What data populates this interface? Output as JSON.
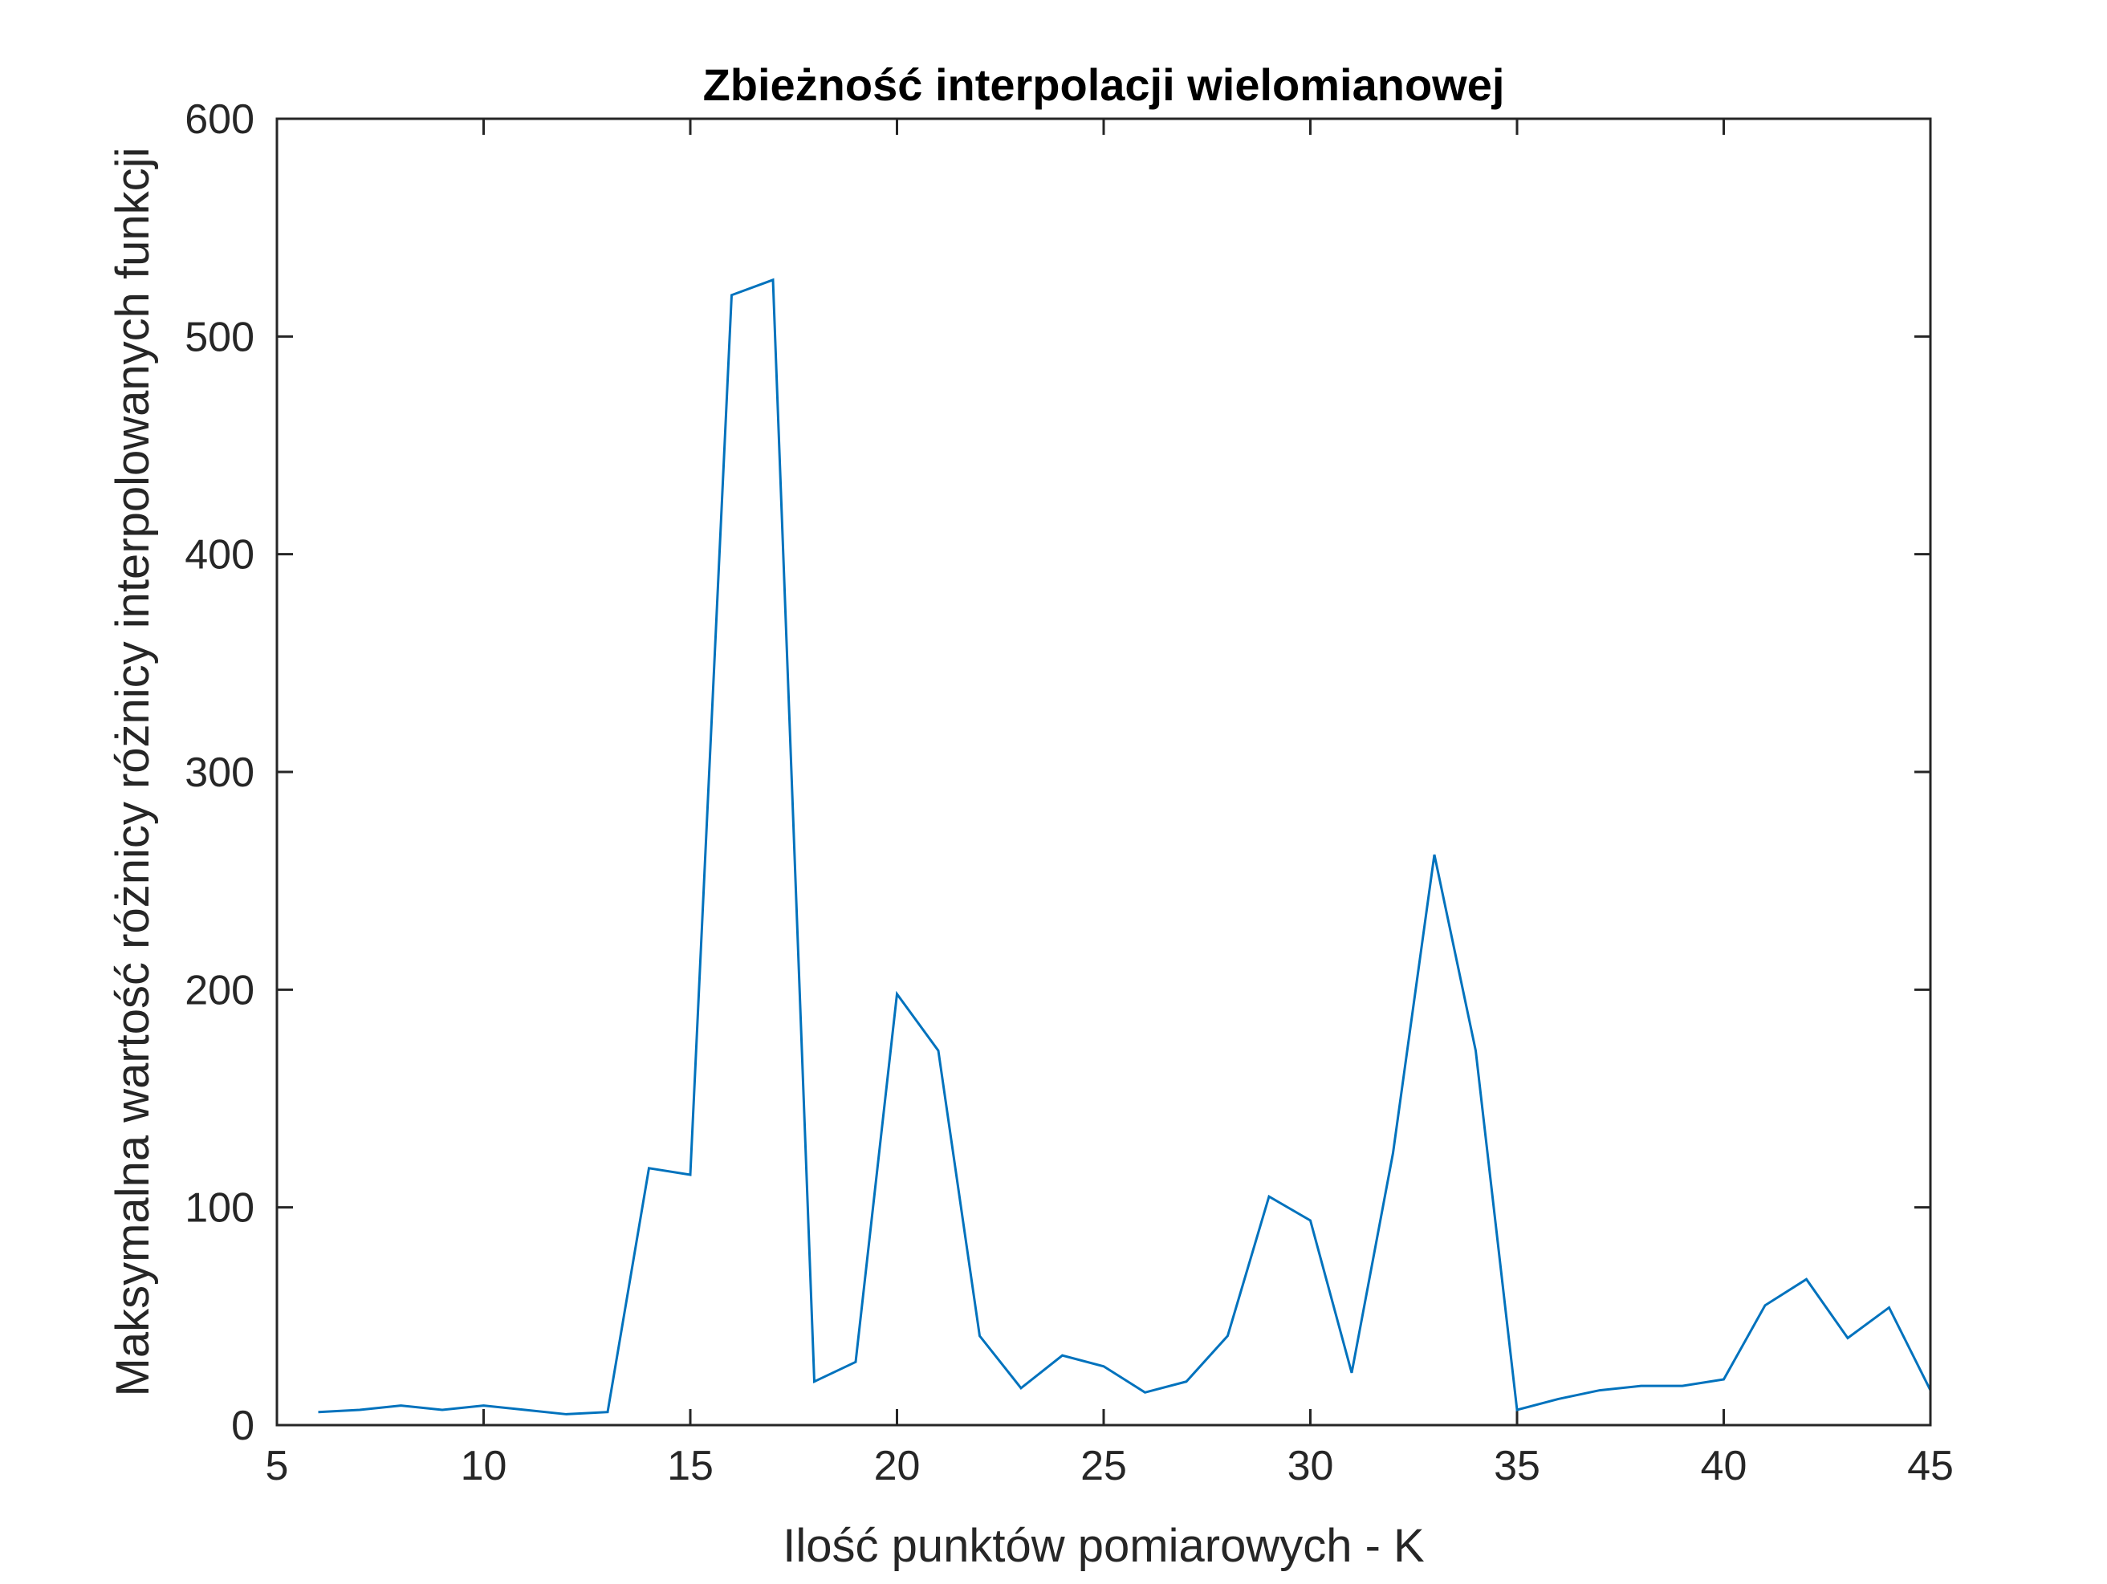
{
  "colors": {
    "line": "#0072BD",
    "axis": "#262626",
    "background": "#ffffff"
  },
  "chart_data": {
    "type": "line",
    "title": "Zbieżność interpolacji wielomianowej",
    "xlabel": "Ilość punktów pomiarowych - K",
    "ylabel": "Maksymalna wartość różnicy różnicy interpolowanych funkcji",
    "xlim": [
      5,
      45
    ],
    "ylim": [
      0,
      600
    ],
    "xticks": [
      "5",
      "10",
      "15",
      "20",
      "25",
      "30",
      "35",
      "40",
      "45"
    ],
    "yticks": [
      "0",
      "100",
      "200",
      "300",
      "400",
      "500",
      "600"
    ],
    "grid": false,
    "series": [
      {
        "x": [
          6,
          7,
          8,
          9,
          10,
          11,
          12,
          13,
          14,
          15,
          16,
          17,
          18,
          19,
          20,
          21,
          22,
          23,
          24,
          25,
          26,
          27,
          28,
          29,
          30,
          31,
          32,
          33,
          34,
          35,
          36,
          37,
          38,
          39,
          40,
          41,
          42,
          43,
          44,
          45
        ],
        "y": [
          6,
          7,
          9,
          7,
          9,
          7,
          5,
          6,
          118,
          115,
          519,
          526,
          20,
          29,
          198,
          172,
          41,
          17,
          32,
          27,
          15,
          20,
          41,
          105,
          94,
          24,
          125,
          262,
          172,
          7,
          12,
          16,
          18,
          18,
          21,
          55,
          67,
          40,
          54,
          16
        ]
      }
    ]
  }
}
